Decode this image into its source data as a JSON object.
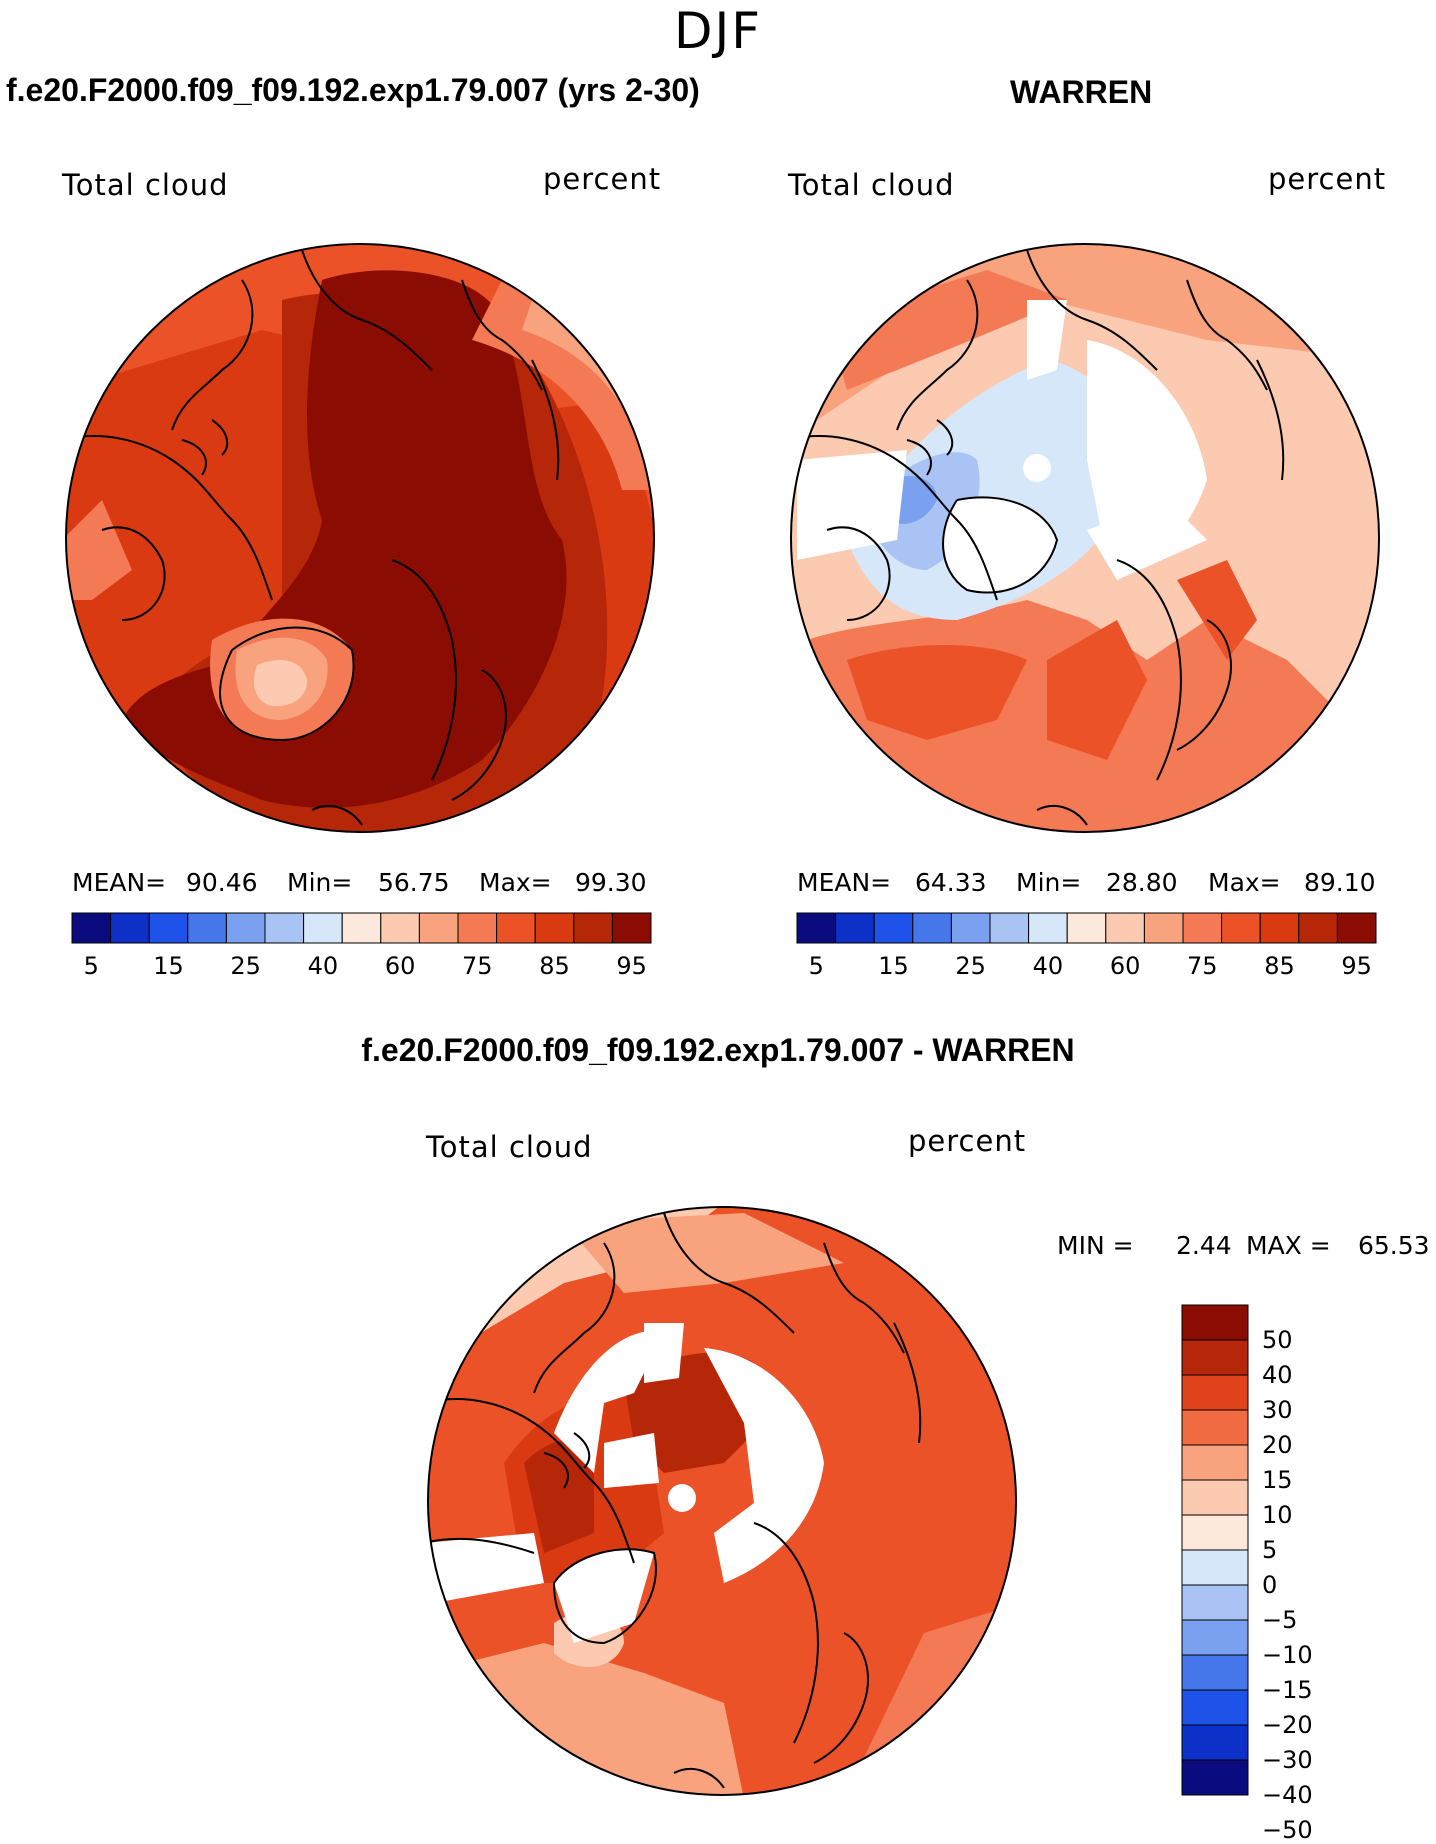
{
  "figure": {
    "season": "DJF"
  },
  "panels": {
    "model": {
      "title": "f.e20.F2000.f09_f09.192.exp1.79.007 (yrs 2-30)",
      "field_label": "Total cloud",
      "units_label": "percent",
      "stats": {
        "mean_label": "MEAN=",
        "mean": "90.46",
        "min_label": "Min=",
        "min": "56.75",
        "max_label": "Max=",
        "max": "99.30"
      }
    },
    "obs": {
      "title": "WARREN",
      "field_label": "Total cloud",
      "units_label": "percent",
      "stats": {
        "mean_label": "MEAN=",
        "mean": "64.33",
        "min_label": "Min=",
        "min": "28.80",
        "max_label": "Max=",
        "max": "89.10"
      }
    },
    "diff": {
      "title": "f.e20.F2000.f09_f09.192.exp1.79.007 - WARREN",
      "field_label": "Total cloud",
      "units_label": "percent",
      "stats": {
        "min_label": "MIN =",
        "min": "2.44",
        "max_label": "MAX =",
        "max": "65.53"
      }
    }
  },
  "colorbars": {
    "abs": {
      "colors": [
        "#0b0b80",
        "#0d31c8",
        "#1f52e8",
        "#4577ea",
        "#7aa0f0",
        "#a9c4f4",
        "#d7e7fa",
        "#fde9dc",
        "#fbcab0",
        "#f8a27e",
        "#f37a55",
        "#ec5228",
        "#d93a12",
        "#b52708",
        "#8b0c02"
      ],
      "tick_labels": [
        "5",
        "15",
        "25",
        "40",
        "60",
        "75",
        "85",
        "95"
      ]
    },
    "diff": {
      "colors": [
        "#8b0c02",
        "#b52708",
        "#e0431b",
        "#f06a42",
        "#f8a27e",
        "#fbcab0",
        "#fde9dc",
        "#d7e7fa",
        "#a9c4f4",
        "#7aa0f0",
        "#4577ea",
        "#1f52e8",
        "#0d31c8",
        "#0b0b80"
      ],
      "tick_labels": [
        "50",
        "40",
        "30",
        "20",
        "15",
        "10",
        "5",
        "0",
        "−5",
        "−10",
        "−15",
        "−20",
        "−30",
        "−40",
        "−50"
      ]
    }
  },
  "map_colors": {
    "deep": "#8b0c02",
    "dark": "#b52708",
    "mid": "#d93a12",
    "orange": "#ec5228",
    "salmon": "#f37a55",
    "peach": "#f8a27e",
    "light": "#fbcab0",
    "pale": "#fde9dc",
    "lightblue": "#d7e7fa",
    "blue": "#a9c4f4",
    "midblue": "#7aa0f0",
    "missing": "#ffffff",
    "coast": "#000000"
  }
}
